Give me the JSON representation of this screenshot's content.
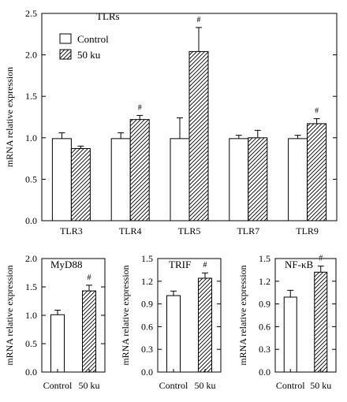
{
  "chart_data": [
    {
      "type": "bar",
      "title": "TLRs",
      "ylabel": "mRNA relative expression",
      "xlabel": "",
      "ylim": [
        0,
        2.5
      ],
      "yticks": [
        "0.0",
        "0.5",
        "1.0",
        "1.5",
        "2.0",
        "2.5"
      ],
      "categories": [
        "TLR3",
        "TLR4",
        "TLR5",
        "TLR7",
        "TLR9"
      ],
      "legend": {
        "placement": "top-left",
        "entries": [
          "Control",
          "50 ku"
        ]
      },
      "series": [
        {
          "name": "Control",
          "values": [
            0.99,
            0.99,
            0.99,
            0.99,
            0.99
          ],
          "errors": [
            0.07,
            0.07,
            0.25,
            0.04,
            0.04
          ]
        },
        {
          "name": "50 ku",
          "values": [
            0.87,
            1.22,
            2.04,
            1.0,
            1.17
          ],
          "errors": [
            0.03,
            0.05,
            0.29,
            0.09,
            0.06
          ]
        }
      ],
      "significance": {
        "mark": "#",
        "series": "50 ku",
        "categories": [
          "TLR4",
          "TLR5",
          "TLR9"
        ]
      }
    },
    {
      "type": "bar",
      "title": "MyD88",
      "ylabel": "mRNA relative expression",
      "xlabel": "",
      "ylim": [
        0,
        2.0
      ],
      "yticks": [
        "0.0",
        "0.5",
        "1.0",
        "1.5",
        "2.0"
      ],
      "categories": [
        "Control",
        "50 ku"
      ],
      "values": [
        1.01,
        1.43
      ],
      "errors": [
        0.08,
        0.1
      ],
      "significance": {
        "mark": "#",
        "categories": [
          "50 ku"
        ]
      }
    },
    {
      "type": "bar",
      "title": "TRIF",
      "ylabel": "mRNA relative expression",
      "xlabel": "",
      "ylim": [
        0,
        1.5
      ],
      "yticks": [
        "0.0",
        "0.3",
        "0.6",
        "0.9",
        "1.2",
        "1.5"
      ],
      "categories": [
        "Control",
        "50 ku"
      ],
      "values": [
        1.01,
        1.24
      ],
      "errors": [
        0.06,
        0.07
      ],
      "significance": {
        "mark": "#",
        "categories": [
          "50 ku"
        ]
      }
    },
    {
      "type": "bar",
      "title": "NF-κB",
      "ylabel": "mRNA relative expression",
      "xlabel": "",
      "ylim": [
        0,
        1.5
      ],
      "yticks": [
        "0.0",
        "0.3",
        "0.6",
        "0.9",
        "1.2",
        "1.5"
      ],
      "categories": [
        "Control",
        "50 ku"
      ],
      "values": [
        0.99,
        1.32
      ],
      "errors": [
        0.09,
        0.08
      ],
      "significance": {
        "mark": "#",
        "categories": [
          "50 ku"
        ]
      }
    }
  ]
}
